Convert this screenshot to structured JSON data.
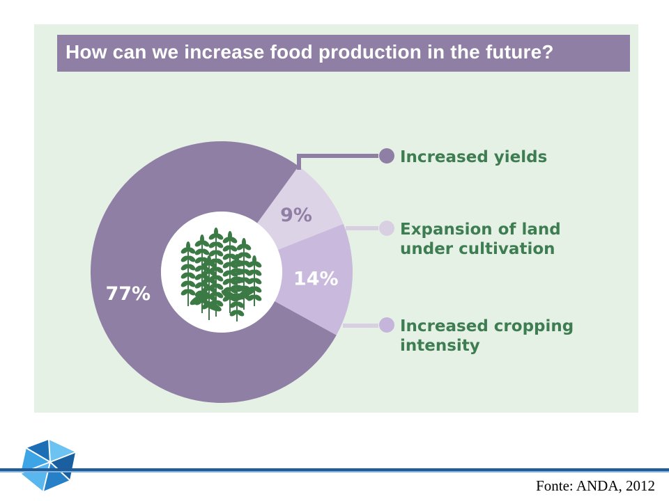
{
  "title": "How can we increase food production in the future?",
  "chart_data": {
    "type": "pie",
    "categories": [
      "Increased yields",
      "Expansion of land under cultivation",
      "Increased cropping intensity"
    ],
    "values": [
      77,
      9,
      14
    ],
    "labels": [
      "77%",
      "9%",
      "14%"
    ],
    "legend": [
      {
        "lines": [
          "Increased yields"
        ]
      },
      {
        "lines": [
          "Expansion of land",
          "under cultivation"
        ]
      },
      {
        "lines": [
          "Increased cropping",
          "intensity"
        ]
      }
    ],
    "colors": [
      "#907fa5",
      "#dcd4e6",
      "#c9b9dd"
    ],
    "legend_colors": [
      "#907fa5",
      "#d8d0e2",
      "#c5b5da"
    ],
    "label_colors": [
      "#ffffff",
      "#907fa5",
      "#ffffff"
    ],
    "text_color": "#3e7d52",
    "connector_color": "#907fa5",
    "center_icon": "wheat-plants-icon",
    "style": "donut"
  },
  "footer": {
    "source": "Fonte: ANDA, 2012",
    "logo_icon": "geodesic-logo-icon"
  }
}
